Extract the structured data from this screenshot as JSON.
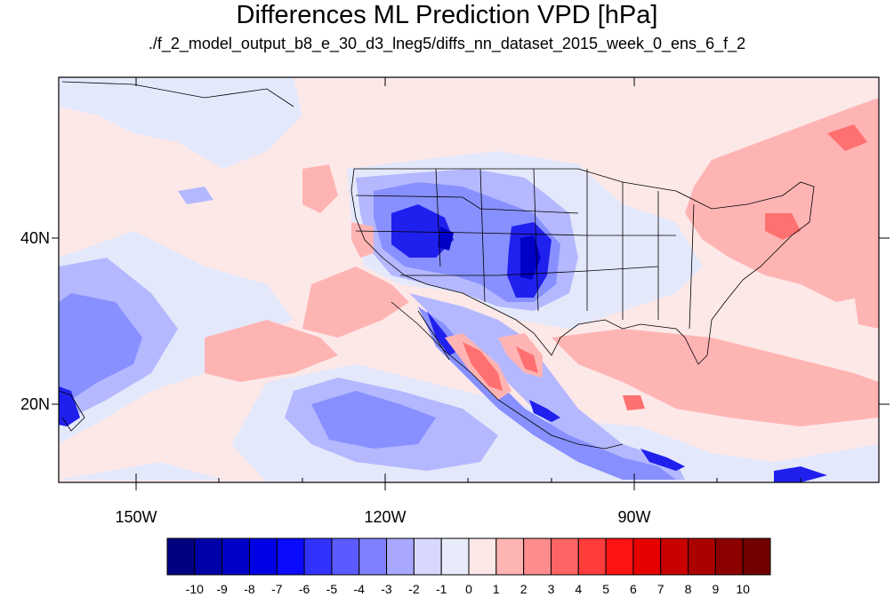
{
  "title": "Differences ML Prediction VPD [hPa]",
  "subtitle": "./f_2_model_output_b8_e_30_d3_lneg5/diffs_nn_dataset_2015_week_0_ens_6_f_2",
  "map": {
    "projection": "lat-lon",
    "lon_range": [
      -159,
      -60
    ],
    "lat_range": [
      11,
      59
    ],
    "y_ticks": [
      {
        "lat": 40,
        "label": "40N"
      },
      {
        "lat": 20,
        "label": "20N"
      }
    ],
    "x_ticks": [
      {
        "lon": -150,
        "label": "150W"
      },
      {
        "lon": -120,
        "label": "120W"
      },
      {
        "lon": -90,
        "label": "90W"
      }
    ]
  },
  "colorbar": {
    "colors": [
      "#000080",
      "#0000a8",
      "#0000c6",
      "#0000e4",
      "#0a0aff",
      "#3232ff",
      "#5a5aff",
      "#8080ff",
      "#a8a8ff",
      "#d8d8ff",
      "#e8ecfa",
      "#fde8e8",
      "#ffb4b4",
      "#ff8c8c",
      "#ff6464",
      "#ff3c3c",
      "#ff1414",
      "#e60000",
      "#c80000",
      "#aa0000",
      "#8c0000",
      "#720000"
    ],
    "labels": [
      "-10",
      "-9",
      "-8",
      "-7",
      "-6",
      "-5",
      "-4",
      "-3",
      "-2",
      "-1",
      "0",
      "1",
      "2",
      "3",
      "4",
      "5",
      "6",
      "7",
      "8",
      "9",
      "10"
    ]
  }
}
